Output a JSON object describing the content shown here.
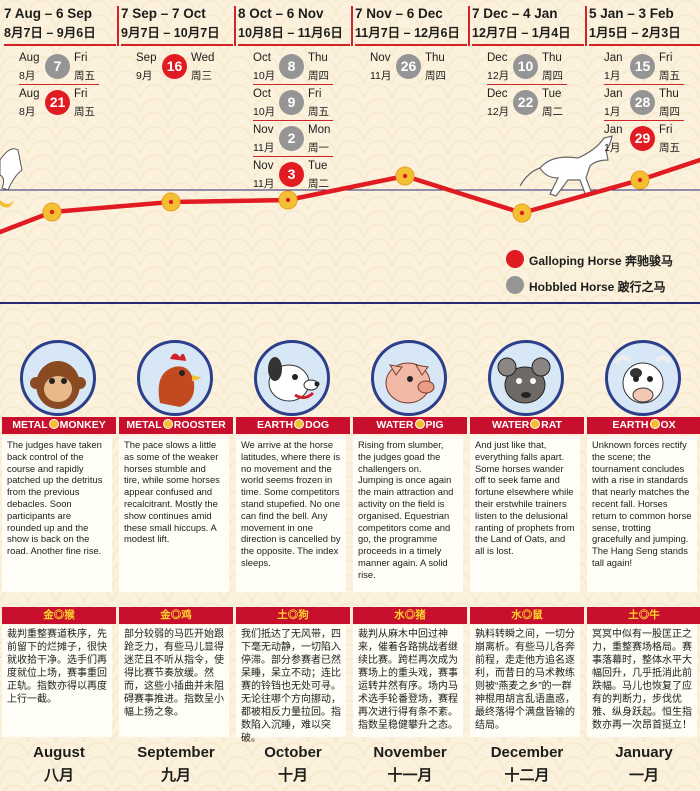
{
  "columns": [
    {
      "range_en": "7 Aug – 6 Sep",
      "range_zh": "8月7日 – 9月6日",
      "dates": [
        {
          "mo": "Aug",
          "zmo": "8月",
          "day": "7",
          "wd": "Fri",
          "zwd": "周五",
          "type": "grey"
        },
        {
          "mo": "Aug",
          "zmo": "8月",
          "day": "21",
          "wd": "Fri",
          "zwd": "周五",
          "type": "red"
        }
      ],
      "element": "METAL",
      "animal": "MONKEY",
      "en_text": "The judges have taken back control of the course and rapidly patched up the detritus from the previous debacles. Soon participants are rounded up and the show is back on the road. Another fine rise.",
      "zh_banner": "金◎猴",
      "zh_text": "裁判重整赛道秩序，先前留下的烂摊子，很快就收拾干净。选手们再度就位上场，赛事重回正轨。指数亦得以再度上行一截。",
      "month_en": "August",
      "month_zh": "八月"
    },
    {
      "range_en": "7 Sep – 7 Oct",
      "range_zh": "9月7日 – 10月7日",
      "dates": [
        {
          "mo": "Sep",
          "zmo": "9月",
          "day": "16",
          "wd": "Wed",
          "zwd": "周三",
          "type": "red"
        }
      ],
      "element": "METAL",
      "animal": "ROOSTER",
      "en_text": "The pace slows a little as some of the weaker horses stumble and tire, while some horses appear confused and recalcitrant. Mostly the show continues amid these small hiccups. A modest lift.",
      "zh_banner": "金◎鸡",
      "zh_text": "部分较弱的马匹开始跟跄乏力，有些马儿显得迷茫且不听从指令，使得比赛节奏放缓。然而，这些小插曲并未阻碍赛事推进。指数呈小幅上扬之象。",
      "month_en": "September",
      "month_zh": "九月"
    },
    {
      "range_en": "8 Oct – 6 Nov",
      "range_zh": "10月8日 – 11月6日",
      "dates": [
        {
          "mo": "Oct",
          "zmo": "10月",
          "day": "8",
          "wd": "Thu",
          "zwd": "周四",
          "type": "grey"
        },
        {
          "mo": "Oct",
          "zmo": "10月",
          "day": "9",
          "wd": "Fri",
          "zwd": "周五",
          "type": "grey"
        },
        {
          "mo": "Nov",
          "zmo": "11月",
          "day": "2",
          "wd": "Mon",
          "zwd": "周一",
          "type": "grey"
        },
        {
          "mo": "Nov",
          "zmo": "11月",
          "day": "3",
          "wd": "Tue",
          "zwd": "周二",
          "type": "red"
        }
      ],
      "element": "EARTH",
      "animal": "DOG",
      "en_text": "We arrive at the horse latitudes, where there is no movement and the world seems frozen in time. Some competitors stand stupefied. No one can find the bell. Any movement in one direction is cancelled by the opposite. The index sleeps.",
      "zh_banner": "土◎狗",
      "zh_text": "我们抵达了无风带，四下毫无动静，一切陷入停滞。部分参赛者已然呆睡，呆立不动；连比赛的铃铛也无处可寻。无论往哪个方向挪动，都被相反力量拉回。指数陷入沉睡，难以突破。",
      "month_en": "October",
      "month_zh": "十月"
    },
    {
      "range_en": "7 Nov – 6 Dec",
      "range_zh": "11月7日 – 12月6日",
      "dates": [
        {
          "mo": "Nov",
          "zmo": "11月",
          "day": "26",
          "wd": "Thu",
          "zwd": "周四",
          "type": "grey"
        }
      ],
      "element": "WATER",
      "animal": "PIG",
      "en_text": "Rising from slumber, the judges goad the challengers on. Jumping is once again the main attraction and activity on the field is organised. Equestrian competitors come and go, the programme proceeds in a timely manner again. A solid rise.",
      "zh_banner": "水◎猪",
      "zh_text": "裁判从麻木中回过神来，催着各路挑战者继续比赛。跨栏再次成为赛场上的重头戏，赛事运转井然有序。场内马术选手轮番登场，赛程再次进行得有条不紊。指数呈稳健攀升之态。",
      "month_en": "November",
      "month_zh": "十一月"
    },
    {
      "range_en": "7 Dec – 4 Jan",
      "range_zh": "12月7日 – 1月4日",
      "dates": [
        {
          "mo": "Dec",
          "zmo": "12月",
          "day": "10",
          "wd": "Thu",
          "zwd": "周四",
          "type": "grey"
        },
        {
          "mo": "Dec",
          "zmo": "12月",
          "day": "22",
          "wd": "Tue",
          "zwd": "周二",
          "type": "grey"
        }
      ],
      "element": "WATER",
      "animal": "RAT",
      "en_text": "And just like that, everything falls apart. Some horses wander off to seek fame and fortune elsewhere while their erstwhile trainers listen to the delusional ranting of prophets from the Land of Oats, and all is lost.",
      "zh_banner": "水◎鼠",
      "zh_text": "孰料转瞬之间，一切分崩离析。有些马儿各奔前程，走走他方追名逐利，而昔日的马术教练则被“燕麦之乡”的一群神棍用胡言乱语蛊惑，最终落得个满盘皆输的结局。",
      "month_en": "December",
      "month_zh": "十二月"
    },
    {
      "range_en": "5 Jan – 3 Feb",
      "range_zh": "1月5日 – 2月3日",
      "dates": [
        {
          "mo": "Jan",
          "zmo": "1月",
          "day": "15",
          "wd": "Fri",
          "zwd": "周五",
          "type": "grey"
        },
        {
          "mo": "Jan",
          "zmo": "1月",
          "day": "28",
          "wd": "Thu",
          "zwd": "周四",
          "type": "grey"
        },
        {
          "mo": "Jan",
          "zmo": "1月",
          "day": "29",
          "wd": "Fri",
          "zwd": "周五",
          "type": "red"
        }
      ],
      "element": "EARTH",
      "animal": "OX",
      "en_text": "Unknown forces rectify the scene; the tournament concludes with a rise in standards that nearly matches the recent fall. Horses return to common horse sense, trotting gracefully and jumping. The Hang Seng stands tall again!",
      "zh_banner": "土◎牛",
      "zh_text": "冥冥中似有一股匡正之力，重整赛场格局。赛事落幕时，整体水平大幅回升，几乎抵消此前跌幅。马儿也恢复了应有的判断力，步伐优雅、纵身跃起。恒生指数亦再一次昂首挺立！",
      "month_en": "January",
      "month_zh": "一月"
    }
  ],
  "legend": [
    {
      "label": "Galloping Horse 奔驰骏马",
      "color": "#e11b22"
    },
    {
      "label": "Hobbled Horse 跛行之马",
      "color": "#959595"
    }
  ],
  "colors": {
    "accent_red": "#d3232a",
    "banner_red": "#c8102e",
    "gold": "#f3c032",
    "navy": "#2a2a74"
  }
}
